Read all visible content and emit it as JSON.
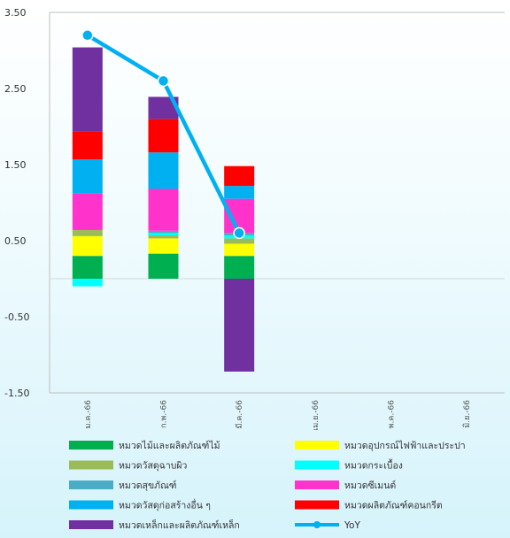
{
  "chart_data": {
    "type": "bar",
    "stacked": true,
    "categories": [
      "ม.ค.-66",
      "ก.พ.-66",
      "มี.ค.-66",
      "เม.ย.-66",
      "พ.ค.-66",
      "มิ.ย.-66"
    ],
    "ylim": [
      -1.5,
      3.5
    ],
    "yticks": [
      "3.50",
      "2.50",
      "1.50",
      "0.50",
      "-0.50",
      "-1.50"
    ],
    "ytick_values": [
      3.5,
      2.5,
      1.5,
      0.5,
      -0.5,
      -1.5
    ],
    "grid": false,
    "legend_position": "bottom",
    "series": [
      {
        "name": "หมวดไม้และผลิตภัณฑ์ไม้",
        "color": "#00b050",
        "values": [
          0.3,
          0.33,
          0.3,
          null,
          null,
          null
        ]
      },
      {
        "name": "หมวดอุปกรณ์ไฟฟ้าและประปา",
        "color": "#ffff00",
        "values": [
          0.26,
          0.2,
          0.16,
          null,
          null,
          null
        ]
      },
      {
        "name": "หมวดวัสดุฉาบผิว",
        "color": "#9bbb59",
        "values": [
          0.08,
          0.04,
          0.07,
          null,
          null,
          null
        ]
      },
      {
        "name": "หมวดกระเบื้อง",
        "color": "#00ffff",
        "values": [
          -0.1,
          0.03,
          0.04,
          null,
          null,
          null
        ]
      },
      {
        "name": "หมวดสุขภัณฑ์",
        "color": "#4bacc6",
        "values": [
          0.0,
          0.03,
          0.03,
          null,
          null,
          null
        ]
      },
      {
        "name": "หมวดซีเมนต์",
        "color": "#ff33cc",
        "values": [
          0.48,
          0.55,
          0.45,
          null,
          null,
          null
        ]
      },
      {
        "name": "หมวดวัสดุก่อสร้างอื่น ๆ",
        "color": "#00b0f0",
        "values": [
          0.45,
          0.48,
          0.17,
          null,
          null,
          null
        ]
      },
      {
        "name": "หมวดผลิตภัณฑ์คอนกรีต",
        "color": "#ff0000",
        "values": [
          0.37,
          0.44,
          0.26,
          null,
          null,
          null
        ]
      },
      {
        "name": "หมวดเหล็กและผลิตภัณฑ์เหล็ก",
        "color": "#7030a0",
        "values": [
          1.1,
          0.29,
          -1.22,
          null,
          null,
          null
        ]
      }
    ],
    "line": {
      "name": "YoY",
      "color": "#00b0f0",
      "values": [
        3.2,
        2.6,
        0.6,
        null,
        null,
        null
      ]
    }
  }
}
